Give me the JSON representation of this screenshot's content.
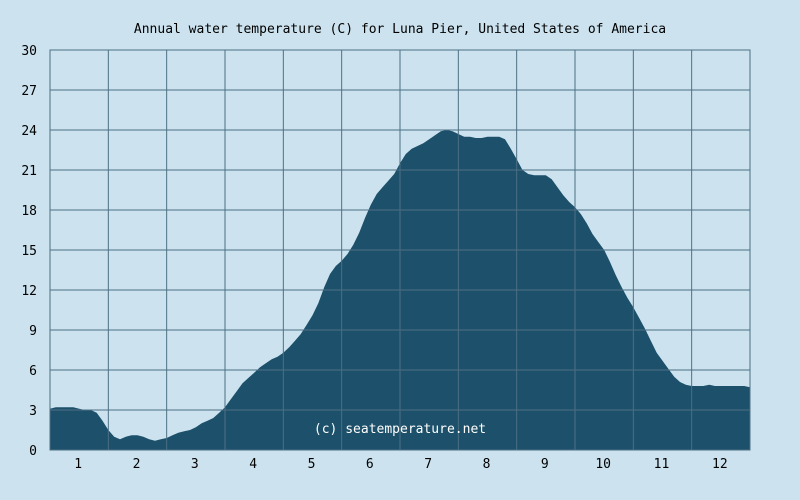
{
  "chart_data": {
    "type": "area",
    "title": "Annual water temperature (C) for Luna Pier, United States of America",
    "watermark": "(c) seatemperature.net",
    "xlabel": "",
    "ylabel": "",
    "ylim": [
      0,
      30
    ],
    "xlim": [
      0.5,
      12.5
    ],
    "y_ticks": [
      "0",
      "3",
      "6",
      "9",
      "12",
      "15",
      "18",
      "21",
      "24",
      "27",
      "30"
    ],
    "x_ticks": [
      "1",
      "2",
      "3",
      "4",
      "5",
      "6",
      "7",
      "8",
      "9",
      "10",
      "11",
      "12"
    ],
    "grid": true,
    "colors": {
      "background": "#cce3ef",
      "plot_area": "#cce3ef",
      "fill": "#1d506a",
      "grid": "#4d6f84"
    },
    "series": [
      {
        "points": [
          [
            0.5,
            3.1
          ],
          [
            0.6,
            3.2
          ],
          [
            0.75,
            3.2
          ],
          [
            0.9,
            3.2
          ],
          [
            1.0,
            3.1
          ],
          [
            1.1,
            3.0
          ],
          [
            1.2,
            3.0
          ],
          [
            1.3,
            2.8
          ],
          [
            1.4,
            2.2
          ],
          [
            1.5,
            1.5
          ],
          [
            1.6,
            1.0
          ],
          [
            1.7,
            0.8
          ],
          [
            1.8,
            1.0
          ],
          [
            1.9,
            1.1
          ],
          [
            2.0,
            1.1
          ],
          [
            2.1,
            1.0
          ],
          [
            2.2,
            0.8
          ],
          [
            2.3,
            0.7
          ],
          [
            2.4,
            0.8
          ],
          [
            2.5,
            0.9
          ],
          [
            2.6,
            1.1
          ],
          [
            2.7,
            1.3
          ],
          [
            2.8,
            1.4
          ],
          [
            2.9,
            1.5
          ],
          [
            3.0,
            1.7
          ],
          [
            3.1,
            2.0
          ],
          [
            3.2,
            2.2
          ],
          [
            3.3,
            2.4
          ],
          [
            3.4,
            2.8
          ],
          [
            3.5,
            3.2
          ],
          [
            3.6,
            3.8
          ],
          [
            3.7,
            4.4
          ],
          [
            3.8,
            5.0
          ],
          [
            3.9,
            5.4
          ],
          [
            4.0,
            5.8
          ],
          [
            4.1,
            6.2
          ],
          [
            4.2,
            6.5
          ],
          [
            4.3,
            6.8
          ],
          [
            4.4,
            7.0
          ],
          [
            4.5,
            7.3
          ],
          [
            4.6,
            7.7
          ],
          [
            4.7,
            8.2
          ],
          [
            4.8,
            8.7
          ],
          [
            4.9,
            9.4
          ],
          [
            5.0,
            10.1
          ],
          [
            5.1,
            11.0
          ],
          [
            5.2,
            12.2
          ],
          [
            5.3,
            13.2
          ],
          [
            5.4,
            13.8
          ],
          [
            5.5,
            14.2
          ],
          [
            5.6,
            14.7
          ],
          [
            5.7,
            15.4
          ],
          [
            5.8,
            16.3
          ],
          [
            5.9,
            17.4
          ],
          [
            6.0,
            18.4
          ],
          [
            6.1,
            19.2
          ],
          [
            6.2,
            19.7
          ],
          [
            6.3,
            20.2
          ],
          [
            6.4,
            20.7
          ],
          [
            6.5,
            21.5
          ],
          [
            6.6,
            22.2
          ],
          [
            6.7,
            22.6
          ],
          [
            6.8,
            22.8
          ],
          [
            6.9,
            23.0
          ],
          [
            7.0,
            23.3
          ],
          [
            7.1,
            23.6
          ],
          [
            7.2,
            23.9
          ],
          [
            7.3,
            24.0
          ],
          [
            7.4,
            23.9
          ],
          [
            7.5,
            23.7
          ],
          [
            7.6,
            23.5
          ],
          [
            7.7,
            23.5
          ],
          [
            7.8,
            23.4
          ],
          [
            7.9,
            23.4
          ],
          [
            8.0,
            23.5
          ],
          [
            8.1,
            23.5
          ],
          [
            8.2,
            23.5
          ],
          [
            8.3,
            23.3
          ],
          [
            8.4,
            22.6
          ],
          [
            8.5,
            21.8
          ],
          [
            8.6,
            21.0
          ],
          [
            8.7,
            20.7
          ],
          [
            8.8,
            20.6
          ],
          [
            8.9,
            20.6
          ],
          [
            9.0,
            20.6
          ],
          [
            9.1,
            20.3
          ],
          [
            9.2,
            19.7
          ],
          [
            9.3,
            19.1
          ],
          [
            9.4,
            18.6
          ],
          [
            9.5,
            18.2
          ],
          [
            9.6,
            17.7
          ],
          [
            9.7,
            17.0
          ],
          [
            9.8,
            16.2
          ],
          [
            9.9,
            15.6
          ],
          [
            10.0,
            15.0
          ],
          [
            10.1,
            14.1
          ],
          [
            10.2,
            13.1
          ],
          [
            10.3,
            12.2
          ],
          [
            10.4,
            11.4
          ],
          [
            10.5,
            10.7
          ],
          [
            10.6,
            9.9
          ],
          [
            10.7,
            9.1
          ],
          [
            10.8,
            8.2
          ],
          [
            10.9,
            7.3
          ],
          [
            11.0,
            6.7
          ],
          [
            11.1,
            6.1
          ],
          [
            11.2,
            5.5
          ],
          [
            11.3,
            5.1
          ],
          [
            11.4,
            4.9
          ],
          [
            11.5,
            4.8
          ],
          [
            11.6,
            4.8
          ],
          [
            11.7,
            4.8
          ],
          [
            11.8,
            4.9
          ],
          [
            11.9,
            4.8
          ],
          [
            12.0,
            4.8
          ],
          [
            12.1,
            4.8
          ],
          [
            12.2,
            4.8
          ],
          [
            12.3,
            4.8
          ],
          [
            12.4,
            4.8
          ],
          [
            12.5,
            4.7
          ]
        ]
      }
    ]
  }
}
